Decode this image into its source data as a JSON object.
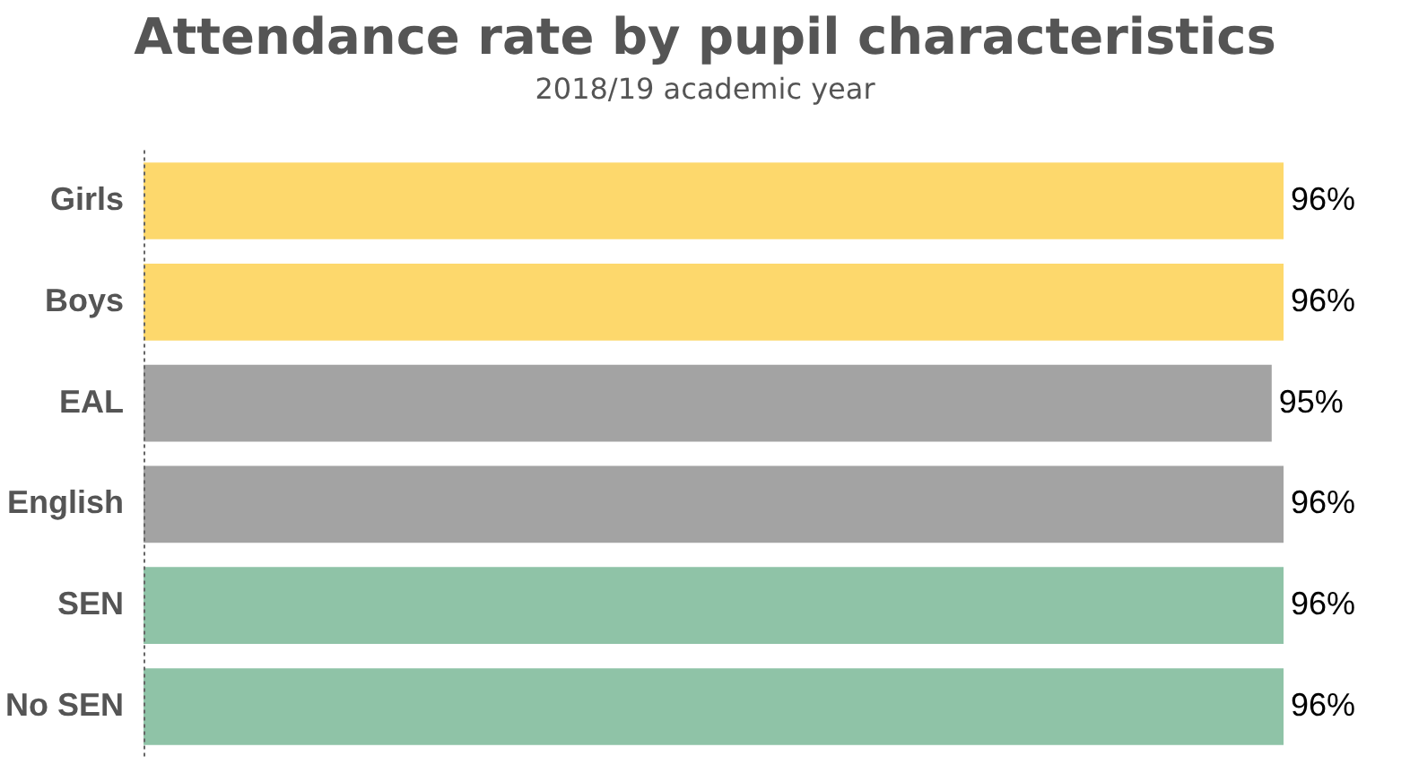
{
  "chart_data": {
    "type": "bar",
    "orientation": "horizontal",
    "title": "Attendance rate by pupil characteristics",
    "subtitle": "2018/19 academic year",
    "categories": [
      "Girls",
      "Boys",
      "EAL",
      "English",
      "SEN",
      "No SEN"
    ],
    "values": [
      96,
      96,
      95,
      96,
      96,
      96
    ],
    "colors": [
      "#fdd86c",
      "#fdd86c",
      "#a3a3a3",
      "#a3a3a3",
      "#8fc3a7",
      "#8fc3a7"
    ],
    "value_labels": [
      "96%",
      "96%",
      "95%",
      "96%",
      "96%",
      "96%"
    ],
    "legend": false
  }
}
